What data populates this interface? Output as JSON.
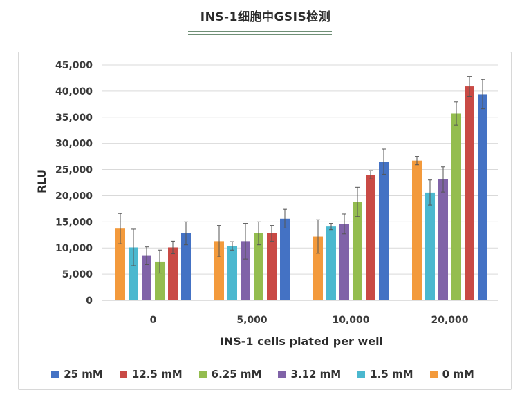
{
  "page": {
    "title": "INS-1细胞中GSIS检测"
  },
  "chart_data": {
    "type": "bar",
    "title": "",
    "xlabel": "INS-1 cells plated per well",
    "ylabel": "RLU",
    "ylim": [
      0,
      45000
    ],
    "yticks": [
      "0",
      "5,000",
      "10,000",
      "15,000",
      "20,000",
      "25,000",
      "30,000",
      "35,000",
      "40,000",
      "45,000"
    ],
    "ytick_values": [
      0,
      5000,
      10000,
      15000,
      20000,
      25000,
      30000,
      35000,
      40000,
      45000
    ],
    "categories": [
      "0",
      "5,000",
      "10,000",
      "20,000"
    ],
    "grid": true,
    "legend_position": "bottom",
    "series": [
      {
        "name": "0 mM",
        "color": "#f39a3c",
        "values": [
          13700,
          11300,
          12200,
          26700
        ],
        "errors": [
          2900,
          3000,
          3200,
          800
        ]
      },
      {
        "name": "1.5 mM",
        "color": "#4bb8cf",
        "values": [
          10100,
          10400,
          14100,
          20600
        ],
        "errors": [
          3500,
          800,
          600,
          2400
        ]
      },
      {
        "name": "3.12 mM",
        "color": "#8063a8",
        "values": [
          8500,
          11300,
          14600,
          23100
        ],
        "errors": [
          1700,
          3400,
          1900,
          2400
        ]
      },
      {
        "name": "6.25 mM",
        "color": "#94bd4f",
        "values": [
          7400,
          12800,
          18800,
          35700
        ],
        "errors": [
          2200,
          2200,
          2800,
          2200
        ]
      },
      {
        "name": "12.5 mM",
        "color": "#c94a45",
        "values": [
          10100,
          12800,
          24000,
          40900
        ],
        "errors": [
          1200,
          1500,
          800,
          1900
        ]
      },
      {
        "name": "25 mM",
        "color": "#4472c4",
        "values": [
          12800,
          15600,
          26500,
          39400
        ],
        "errors": [
          2200,
          1800,
          2400,
          2800
        ]
      }
    ],
    "legend_order": [
      "25 mM",
      "12.5 mM",
      "6.25 mM",
      "3.12 mM",
      "1.5 mM",
      "0 mM"
    ]
  }
}
